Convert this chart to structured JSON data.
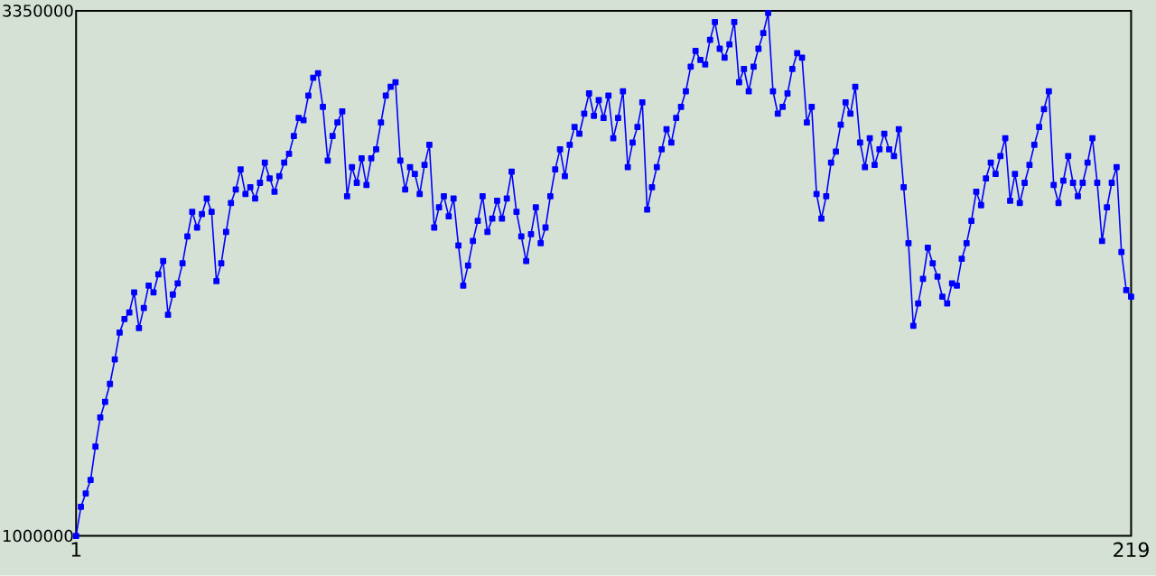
{
  "chart_data": {
    "type": "line",
    "color": "#0000ff",
    "marker": "square",
    "line_style": "solid",
    "xlim": [
      1,
      219
    ],
    "xticks": [
      1,
      219
    ],
    "ylim": [
      1000000,
      3350000
    ],
    "yticks": [
      1000000,
      3350000
    ],
    "x": [
      1,
      2,
      3,
      4,
      5,
      6,
      7,
      8,
      9,
      10,
      11,
      12,
      13,
      14,
      15,
      16,
      17,
      18,
      19,
      20,
      21,
      22,
      23,
      24,
      25,
      26,
      27,
      28,
      29,
      30,
      31,
      32,
      33,
      34,
      35,
      36,
      37,
      38,
      39,
      40,
      41,
      42,
      43,
      44,
      45,
      46,
      47,
      48,
      49,
      50,
      51,
      52,
      53,
      54,
      55,
      56,
      57,
      58,
      59,
      60,
      61,
      62,
      63,
      64,
      65,
      66,
      67,
      68,
      69,
      70,
      71,
      72,
      73,
      74,
      75,
      76,
      77,
      78,
      79,
      80,
      81,
      82,
      83,
      84,
      85,
      86,
      87,
      88,
      89,
      90,
      91,
      92,
      93,
      94,
      95,
      96,
      97,
      98,
      99,
      100,
      101,
      102,
      103,
      104,
      105,
      106,
      107,
      108,
      109,
      110,
      111,
      112,
      113,
      114,
      115,
      116,
      117,
      118,
      119,
      120,
      121,
      122,
      123,
      124,
      125,
      126,
      127,
      128,
      129,
      130,
      131,
      132,
      133,
      134,
      135,
      136,
      137,
      138,
      139,
      140,
      141,
      142,
      143,
      144,
      145,
      146,
      147,
      148,
      149,
      150,
      151,
      152,
      153,
      154,
      155,
      156,
      157,
      158,
      159,
      160,
      161,
      162,
      163,
      164,
      165,
      166,
      167,
      168,
      169,
      170,
      171,
      172,
      173,
      174,
      175,
      176,
      177,
      178,
      179,
      180,
      181,
      182,
      183,
      184,
      185,
      186,
      187,
      188,
      189,
      190,
      191,
      192,
      193,
      194,
      195,
      196,
      197,
      198,
      199,
      200,
      201,
      202,
      203,
      204,
      205,
      206,
      207,
      208,
      209,
      210,
      211,
      212,
      213,
      214,
      215,
      216,
      217,
      218,
      219
    ],
    "values": [
      1000000,
      1130000,
      1190000,
      1250000,
      1400000,
      1530000,
      1600000,
      1680000,
      1790000,
      1910000,
      1970000,
      2000000,
      2090000,
      1930000,
      2020000,
      2120000,
      2090000,
      2170000,
      2230000,
      1990000,
      2080000,
      2130000,
      2220000,
      2340000,
      2450000,
      2380000,
      2440000,
      2510000,
      2450000,
      2140000,
      2220000,
      2360000,
      2490000,
      2550000,
      2640000,
      2530000,
      2560000,
      2510000,
      2580000,
      2670000,
      2600000,
      2540000,
      2610000,
      2670000,
      2710000,
      2790000,
      2870000,
      2860000,
      2970000,
      3050000,
      3070000,
      2920000,
      2680000,
      2790000,
      2850000,
      2900000,
      2520000,
      2650000,
      2580000,
      2690000,
      2570000,
      2690000,
      2730000,
      2850000,
      2970000,
      3010000,
      3030000,
      2680000,
      2550000,
      2650000,
      2620000,
      2530000,
      2660000,
      2750000,
      2380000,
      2470000,
      2520000,
      2430000,
      2510000,
      2300000,
      2120000,
      2210000,
      2320000,
      2410000,
      2520000,
      2360000,
      2420000,
      2500000,
      2420000,
      2510000,
      2630000,
      2450000,
      2340000,
      2230000,
      2350000,
      2470000,
      2310000,
      2380000,
      2520000,
      2640000,
      2730000,
      2610000,
      2750000,
      2830000,
      2800000,
      2890000,
      2980000,
      2880000,
      2950000,
      2870000,
      2970000,
      2780000,
      2870000,
      2990000,
      2650000,
      2760000,
      2830000,
      2940000,
      2460000,
      2560000,
      2650000,
      2730000,
      2820000,
      2760000,
      2870000,
      2920000,
      2990000,
      3100000,
      3170000,
      3130000,
      3110000,
      3220000,
      3300000,
      3180000,
      3140000,
      3200000,
      3300000,
      3030000,
      3090000,
      2990000,
      3100000,
      3180000,
      3250000,
      3340000,
      2990000,
      2890000,
      2920000,
      2980000,
      3090000,
      3160000,
      3140000,
      2850000,
      2920000,
      2530000,
      2420000,
      2520000,
      2670000,
      2720000,
      2840000,
      2940000,
      2890000,
      3010000,
      2760000,
      2650000,
      2780000,
      2660000,
      2730000,
      2800000,
      2730000,
      2700000,
      2820000,
      2560000,
      2310000,
      1940000,
      2040000,
      2150000,
      2290000,
      2220000,
      2160000,
      2070000,
      2040000,
      2130000,
      2120000,
      2240000,
      2310000,
      2410000,
      2540000,
      2480000,
      2600000,
      2670000,
      2620000,
      2700000,
      2780000,
      2500000,
      2620000,
      2490000,
      2580000,
      2660000,
      2750000,
      2830000,
      2910000,
      2990000,
      2570000,
      2490000,
      2590000,
      2700000,
      2580000,
      2520000,
      2580000,
      2670000,
      2780000,
      2580000,
      2320000,
      2470000,
      2580000,
      2650000,
      2270000,
      2100000,
      2070000
    ]
  }
}
